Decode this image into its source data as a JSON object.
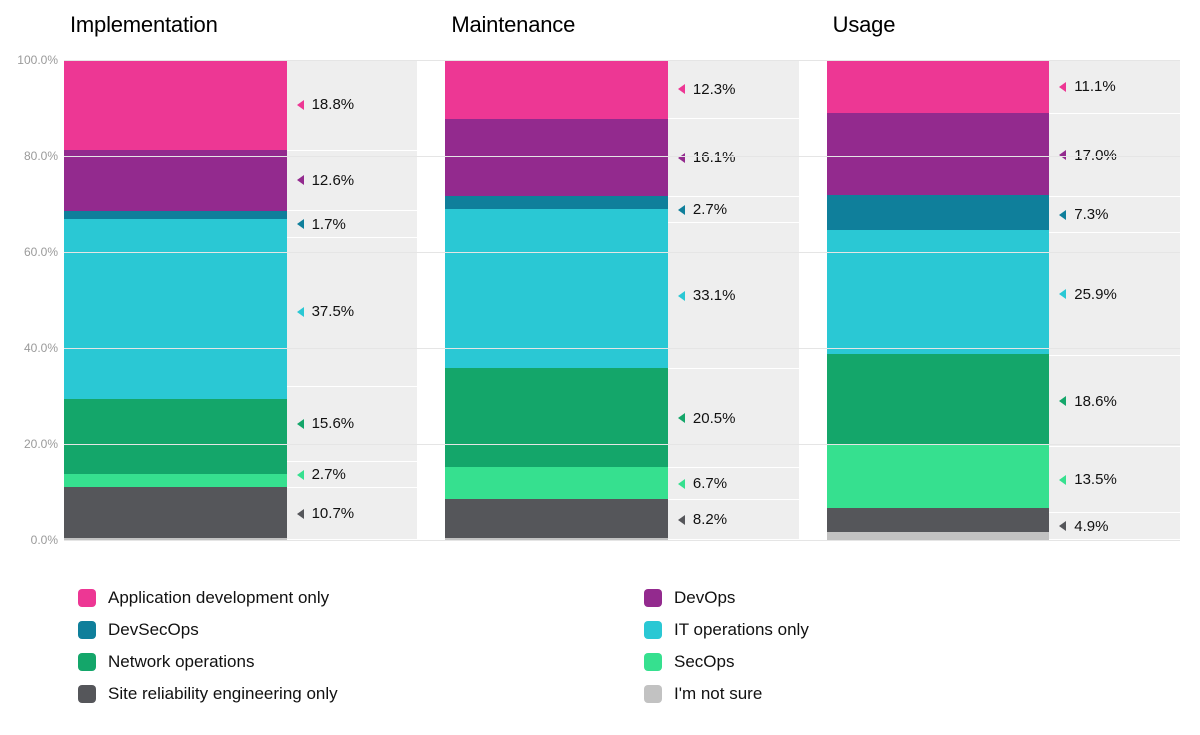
{
  "chart": {
    "type": "stacked-bar-100pct",
    "background_color": "#ffffff",
    "grid_color": "#e5e5e5",
    "ylabel_color": "#9a9a9a",
    "label_bg_color": "#eeeeee",
    "text_color": "#111111",
    "title_fontsize": 22,
    "ytick_fontsize": 12,
    "label_fontsize": 15,
    "legend_fontsize": 17,
    "ylim": [
      0,
      100
    ],
    "ytick_step": 20,
    "yticks": [
      "0.0%",
      "20.0%",
      "40.0%",
      "60.0%",
      "80.0%",
      "100.0%"
    ],
    "series": [
      {
        "key": "app_dev",
        "label": "Application development only",
        "color": "#ed3794"
      },
      {
        "key": "devops",
        "label": "DevOps",
        "color": "#932a8e"
      },
      {
        "key": "devsecops",
        "label": "DevSecOps",
        "color": "#0f7f9b"
      },
      {
        "key": "it_ops",
        "label": "IT operations only",
        "color": "#2ac8d4"
      },
      {
        "key": "net_ops",
        "label": "Network operations",
        "color": "#14a66a"
      },
      {
        "key": "secops",
        "label": "SecOps",
        "color": "#36e08f"
      },
      {
        "key": "sre",
        "label": "Site reliability engineering only",
        "color": "#55565a"
      },
      {
        "key": "unsure",
        "label": "I'm not sure",
        "color": "#c2c2c2"
      }
    ],
    "panels": [
      {
        "title": "Implementation",
        "segments": [
          {
            "series": "app_dev",
            "value": 18.8,
            "label": "18.8%"
          },
          {
            "series": "devops",
            "value": 12.6,
            "label": "12.6%"
          },
          {
            "series": "devsecops",
            "value": 1.7,
            "label": "1.7%"
          },
          {
            "series": "it_ops",
            "value": 37.5,
            "label": "37.5%"
          },
          {
            "series": "net_ops",
            "value": 15.6,
            "label": "15.6%"
          },
          {
            "series": "secops",
            "value": 2.7,
            "label": "2.7%"
          },
          {
            "series": "sre",
            "value": 10.7,
            "label": "10.7%"
          },
          {
            "series": "unsure",
            "value": 0.4,
            "label": ""
          }
        ]
      },
      {
        "title": "Maintenance",
        "segments": [
          {
            "series": "app_dev",
            "value": 12.3,
            "label": "12.3%"
          },
          {
            "series": "devops",
            "value": 16.1,
            "label": "16.1%"
          },
          {
            "series": "devsecops",
            "value": 2.7,
            "label": "2.7%"
          },
          {
            "series": "it_ops",
            "value": 33.1,
            "label": "33.1%"
          },
          {
            "series": "net_ops",
            "value": 20.5,
            "label": "20.5%"
          },
          {
            "series": "secops",
            "value": 6.7,
            "label": "6.7%"
          },
          {
            "series": "sre",
            "value": 8.2,
            "label": "8.2%"
          },
          {
            "series": "unsure",
            "value": 0.4,
            "label": ""
          }
        ]
      },
      {
        "title": "Usage",
        "segments": [
          {
            "series": "app_dev",
            "value": 11.1,
            "label": "11.1%"
          },
          {
            "series": "devops",
            "value": 17.0,
            "label": "17.0%"
          },
          {
            "series": "devsecops",
            "value": 7.3,
            "label": "7.3%"
          },
          {
            "series": "it_ops",
            "value": 25.9,
            "label": "25.9%"
          },
          {
            "series": "net_ops",
            "value": 18.6,
            "label": "18.6%"
          },
          {
            "series": "secops",
            "value": 13.5,
            "label": "13.5%"
          },
          {
            "series": "sre",
            "value": 4.9,
            "label": "4.9%"
          },
          {
            "series": "unsure",
            "value": 1.7,
            "label": ""
          }
        ]
      }
    ]
  }
}
